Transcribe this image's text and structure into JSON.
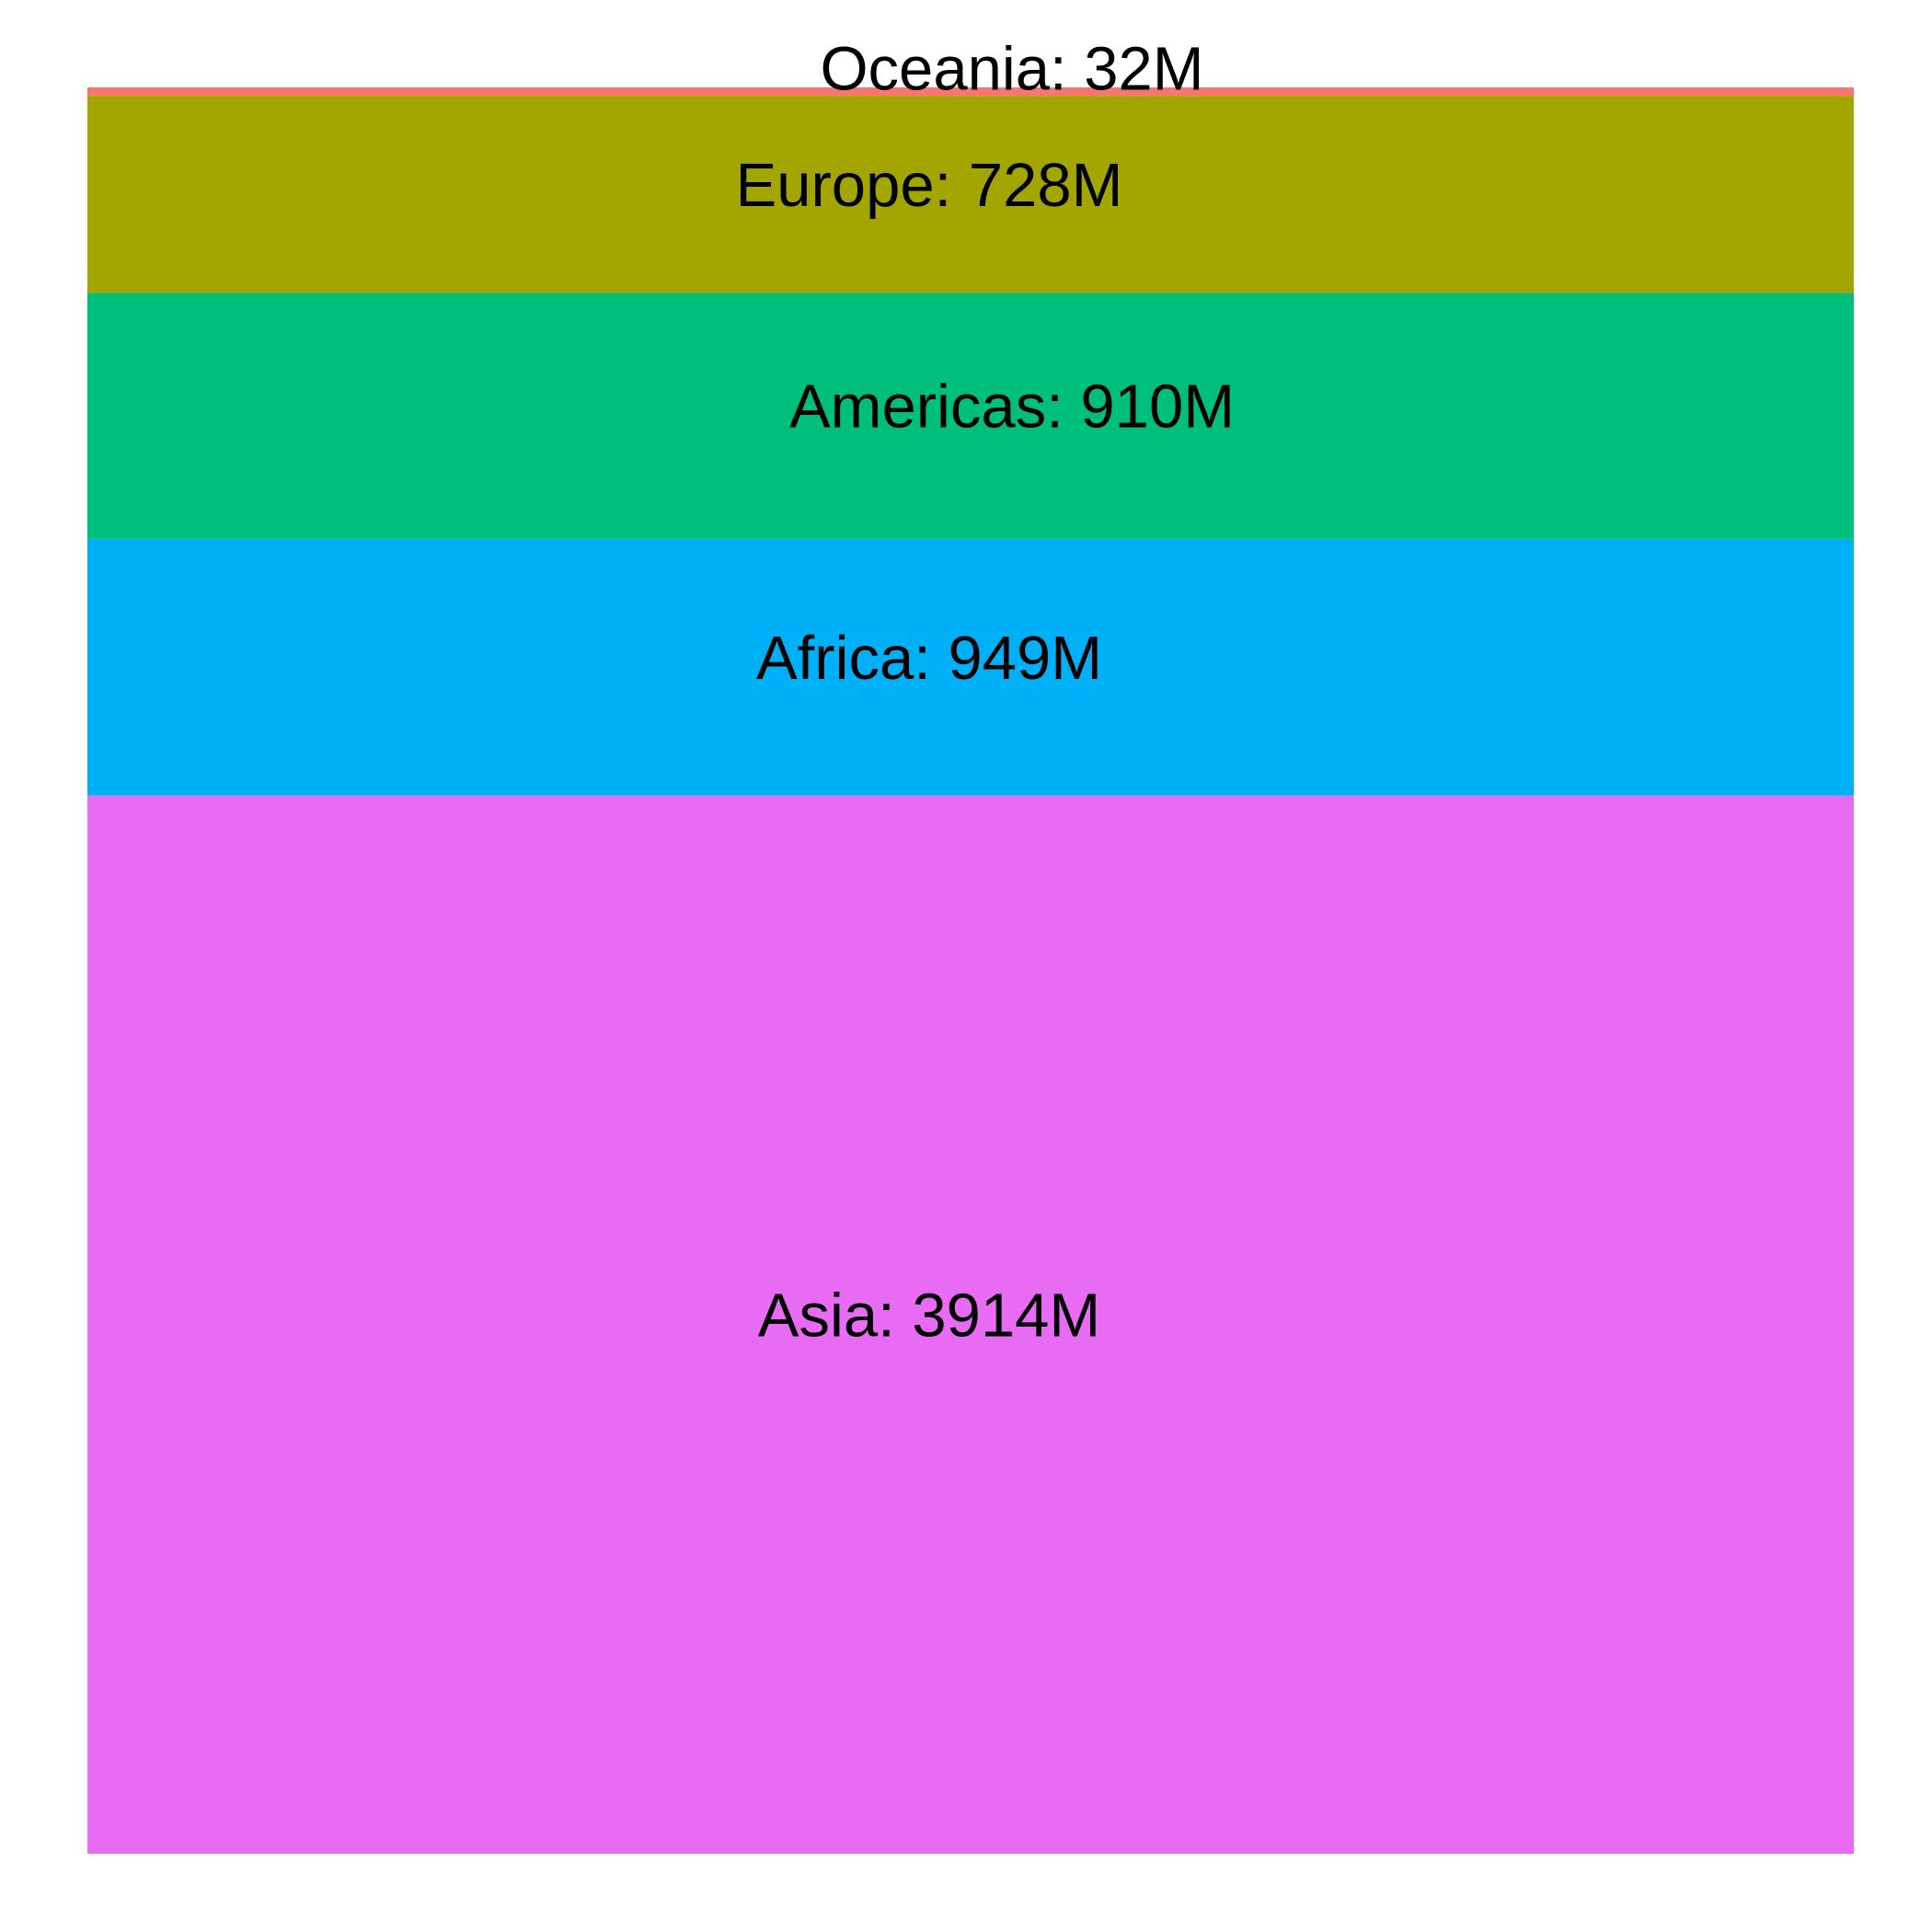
{
  "chart_data": {
    "type": "stacked-bar",
    "orientation": "vertical",
    "stack_order": "largest-at-bottom",
    "unit": "M",
    "segments": [
      {
        "name": "Oceania",
        "value": 32,
        "label": "Oceania: 32M",
        "color": "#F8766D"
      },
      {
        "name": "Europe",
        "value": 728,
        "label": "Europe: 728M",
        "color": "#A3A500"
      },
      {
        "name": "Americas",
        "value": 910,
        "label": "Americas: 910M",
        "color": "#00BF7D"
      },
      {
        "name": "Africa",
        "value": 949,
        "label": "Africa: 949M",
        "color": "#00B0F6"
      },
      {
        "name": "Asia",
        "value": 3914,
        "label": "Asia: 3914M",
        "color": "#E76BF3"
      }
    ],
    "title": "",
    "xlabel": "",
    "ylabel": "",
    "grid": false,
    "legend": "none"
  }
}
